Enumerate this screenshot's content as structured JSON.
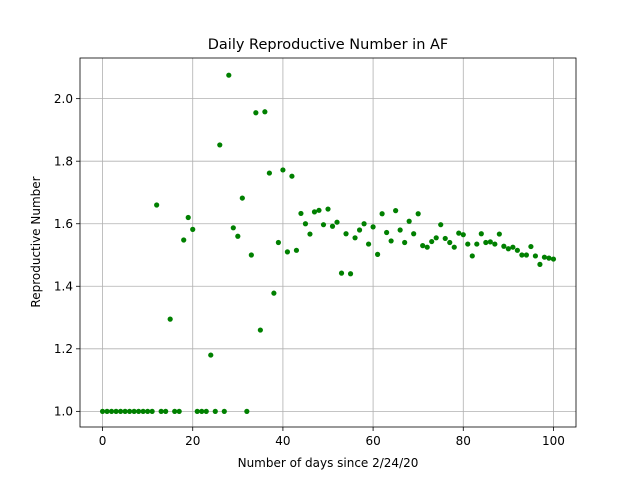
{
  "chart_data": {
    "type": "scatter",
    "title": "Daily Reproductive Number in AF",
    "xlabel": "Number of days since 2/24/20",
    "ylabel": "Reproductive Number",
    "xlim": [
      -5,
      105
    ],
    "ylim": [
      0.95,
      2.13
    ],
    "xticks": [
      0,
      20,
      40,
      60,
      80,
      100
    ],
    "xtick_labels": [
      "0",
      "20",
      "40",
      "60",
      "80",
      "100"
    ],
    "yticks": [
      1.0,
      1.2,
      1.4,
      1.6,
      1.8,
      2.0
    ],
    "ytick_labels": [
      "1.0",
      "1.2",
      "1.4",
      "1.6",
      "1.8",
      "2.0"
    ],
    "grid": true,
    "marker_color": "#008000",
    "points": [
      [
        0,
        1.0
      ],
      [
        1,
        1.0
      ],
      [
        2,
        1.0
      ],
      [
        3,
        1.0
      ],
      [
        4,
        1.0
      ],
      [
        5,
        1.0
      ],
      [
        6,
        1.0
      ],
      [
        7,
        1.0
      ],
      [
        8,
        1.0
      ],
      [
        9,
        1.0
      ],
      [
        10,
        1.0
      ],
      [
        11,
        1.0
      ],
      [
        12,
        1.66
      ],
      [
        13,
        1.0
      ],
      [
        14,
        1.0
      ],
      [
        15,
        1.295
      ],
      [
        16,
        1.0
      ],
      [
        17,
        1.0
      ],
      [
        18,
        1.548
      ],
      [
        19,
        1.62
      ],
      [
        20,
        1.582
      ],
      [
        21,
        1.0
      ],
      [
        22,
        1.0
      ],
      [
        23,
        1.0
      ],
      [
        24,
        1.18
      ],
      [
        25,
        1.0
      ],
      [
        26,
        1.852
      ],
      [
        27,
        1.0
      ],
      [
        28,
        2.075
      ],
      [
        29,
        1.587
      ],
      [
        30,
        1.56
      ],
      [
        31,
        1.682
      ],
      [
        32,
        1.0
      ],
      [
        33,
        1.5
      ],
      [
        34,
        1.955
      ],
      [
        35,
        1.26
      ],
      [
        36,
        1.958
      ],
      [
        37,
        1.762
      ],
      [
        38,
        1.378
      ],
      [
        39,
        1.54
      ],
      [
        40,
        1.772
      ],
      [
        41,
        1.51
      ],
      [
        42,
        1.752
      ],
      [
        43,
        1.515
      ],
      [
        44,
        1.633
      ],
      [
        45,
        1.6
      ],
      [
        46,
        1.567
      ],
      [
        47,
        1.638
      ],
      [
        48,
        1.643
      ],
      [
        49,
        1.597
      ],
      [
        50,
        1.647
      ],
      [
        51,
        1.592
      ],
      [
        52,
        1.605
      ],
      [
        53,
        1.442
      ],
      [
        54,
        1.568
      ],
      [
        55,
        1.44
      ],
      [
        56,
        1.555
      ],
      [
        57,
        1.58
      ],
      [
        58,
        1.6
      ],
      [
        59,
        1.535
      ],
      [
        60,
        1.59
      ],
      [
        61,
        1.502
      ],
      [
        62,
        1.632
      ],
      [
        63,
        1.572
      ],
      [
        64,
        1.545
      ],
      [
        65,
        1.642
      ],
      [
        66,
        1.58
      ],
      [
        67,
        1.54
      ],
      [
        68,
        1.608
      ],
      [
        69,
        1.568
      ],
      [
        70,
        1.632
      ],
      [
        71,
        1.53
      ],
      [
        72,
        1.525
      ],
      [
        73,
        1.543
      ],
      [
        74,
        1.555
      ],
      [
        75,
        1.597
      ],
      [
        76,
        1.553
      ],
      [
        77,
        1.54
      ],
      [
        78,
        1.525
      ],
      [
        79,
        1.57
      ],
      [
        80,
        1.565
      ],
      [
        81,
        1.535
      ],
      [
        82,
        1.497
      ],
      [
        83,
        1.535
      ],
      [
        84,
        1.568
      ],
      [
        85,
        1.54
      ],
      [
        86,
        1.542
      ],
      [
        87,
        1.535
      ],
      [
        88,
        1.567
      ],
      [
        89,
        1.528
      ],
      [
        90,
        1.52
      ],
      [
        91,
        1.525
      ],
      [
        92,
        1.515
      ],
      [
        93,
        1.5
      ],
      [
        94,
        1.5
      ],
      [
        95,
        1.527
      ],
      [
        96,
        1.497
      ],
      [
        97,
        1.47
      ],
      [
        98,
        1.493
      ],
      [
        99,
        1.49
      ],
      [
        100,
        1.487
      ]
    ]
  }
}
